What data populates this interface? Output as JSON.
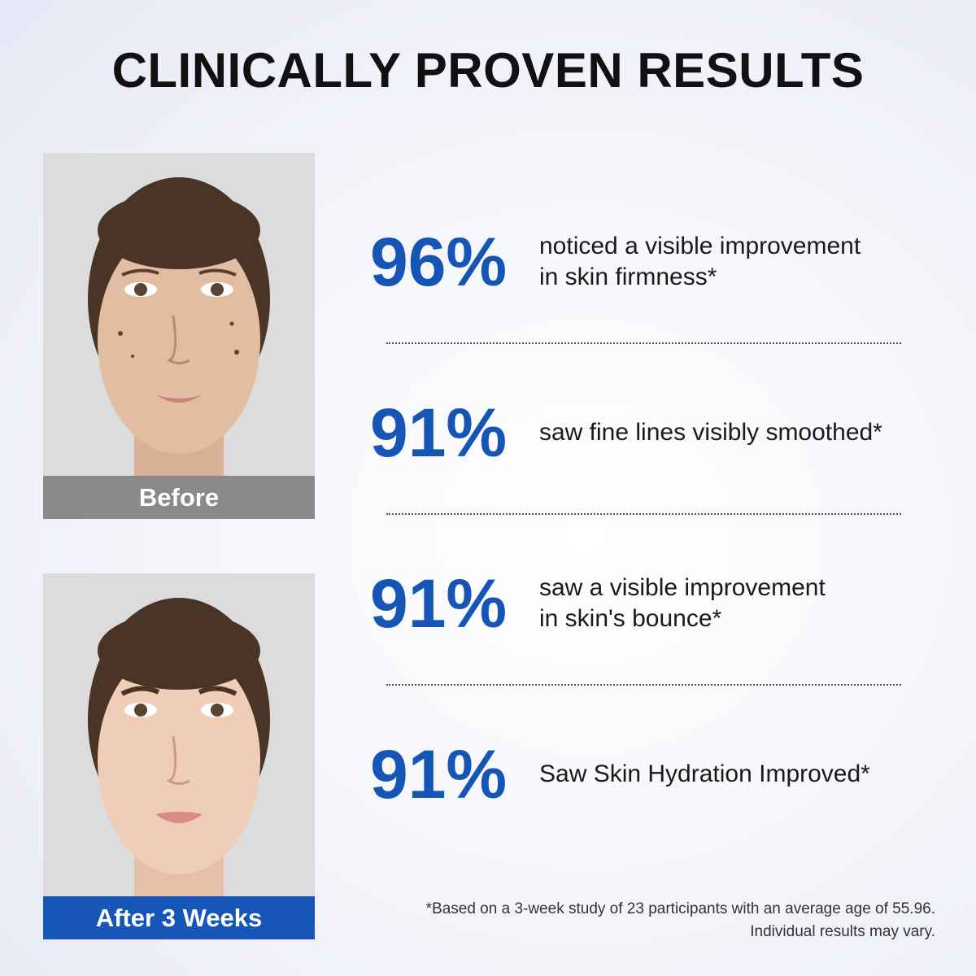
{
  "header": {
    "title": "CLINICALLY PROVEN RESULTS"
  },
  "photos": [
    {
      "label": "Before"
    },
    {
      "label": "After 3 Weeks"
    }
  ],
  "stats": [
    {
      "value": "96%",
      "lines": [
        "noticed a visible improvement",
        "in skin firmness*"
      ]
    },
    {
      "value": "91%",
      "lines": [
        "saw fine lines visibly smoothed*"
      ]
    },
    {
      "value": "91%",
      "lines": [
        "saw a visible improvement",
        "in skin's bounce*"
      ]
    },
    {
      "value": "91%",
      "lines": [
        "Saw Skin Hydration Improved*"
      ]
    }
  ],
  "footnote": [
    "*Based on a 3-week study of 23 participants with an average age of 55.96.",
    "Individual results may vary."
  ]
}
